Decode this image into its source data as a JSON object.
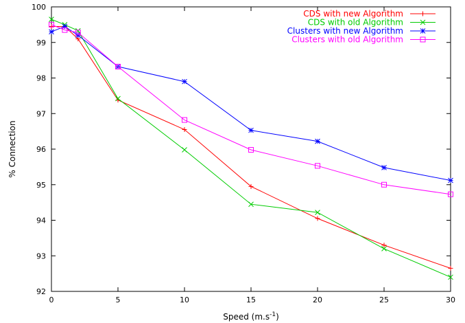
{
  "chart_data": {
    "type": "line",
    "xlabel": "Speed (m.s",
    "xlabel_sup": "-1",
    "xlabel_close": ")",
    "ylabel": "% Connection",
    "xlim": [
      0,
      30
    ],
    "ylim": [
      92,
      100
    ],
    "xticks": [
      0,
      5,
      10,
      15,
      20,
      25,
      30
    ],
    "yticks": [
      92,
      93,
      94,
      95,
      96,
      97,
      98,
      99,
      100
    ],
    "grid": false,
    "legend_position": "top-right",
    "x": [
      0,
      1,
      2,
      5,
      10,
      15,
      20,
      25,
      30
    ],
    "series": [
      {
        "name": "CDS with new Algorithm",
        "color": "#ff0000",
        "marker": "plus",
        "values": [
          99.45,
          99.45,
          99.1,
          97.38,
          96.55,
          94.95,
          94.05,
          93.3,
          92.65
        ]
      },
      {
        "name": "CDS with old Algorithm",
        "color": "#00cc00",
        "marker": "cross",
        "values": [
          99.65,
          99.5,
          99.33,
          97.42,
          95.98,
          94.45,
          94.22,
          93.2,
          92.4
        ]
      },
      {
        "name": "Clusters with new Algorithm",
        "color": "#0000ff",
        "marker": "star",
        "values": [
          99.3,
          99.45,
          99.2,
          98.32,
          97.9,
          96.53,
          96.22,
          95.48,
          95.12
        ]
      },
      {
        "name": "Clusters with old Algorithm",
        "color": "#ff00ff",
        "marker": "square",
        "values": [
          99.5,
          99.35,
          99.28,
          98.32,
          96.82,
          95.98,
          95.53,
          95.0,
          94.73
        ]
      }
    ]
  }
}
